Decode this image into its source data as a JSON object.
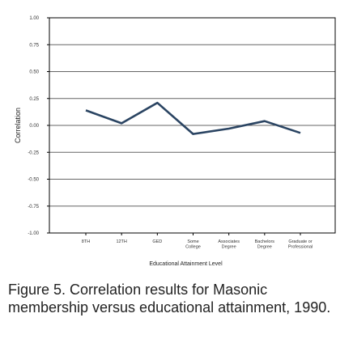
{
  "chart_data": {
    "type": "line",
    "categories": [
      "8TH",
      "12TH",
      "GED",
      "Some College",
      "Associates Degree",
      "Bachelors Degree",
      "Graduate or Professional"
    ],
    "category_lines": [
      [
        "8TH"
      ],
      [
        "12TH"
      ],
      [
        "GED"
      ],
      [
        "Some",
        "College"
      ],
      [
        "Associates",
        "Degree"
      ],
      [
        "Bachelors",
        "Degree"
      ],
      [
        "Graduate or",
        "Professional"
      ]
    ],
    "series": [
      {
        "values": [
          0.14,
          0.02,
          0.21,
          -0.08,
          -0.03,
          0.04,
          -0.07
        ]
      }
    ],
    "ylabel": "Correlation",
    "xlabel": "Educational Attainment Level",
    "ylim": [
      -1.0,
      1.0
    ],
    "y_ticks": [
      "1.00",
      "0.75",
      "0.50",
      "0.25",
      "0.00",
      "-0.25",
      "-0.50",
      "-0.75",
      "-1.00"
    ],
    "grid": "horizontal",
    "colors": {
      "line": "#2a4462",
      "grid": "#666666",
      "axis": "#000000"
    }
  },
  "caption": "Figure 5. Correlation results for Masonic membership versus educational attainment, 1990."
}
